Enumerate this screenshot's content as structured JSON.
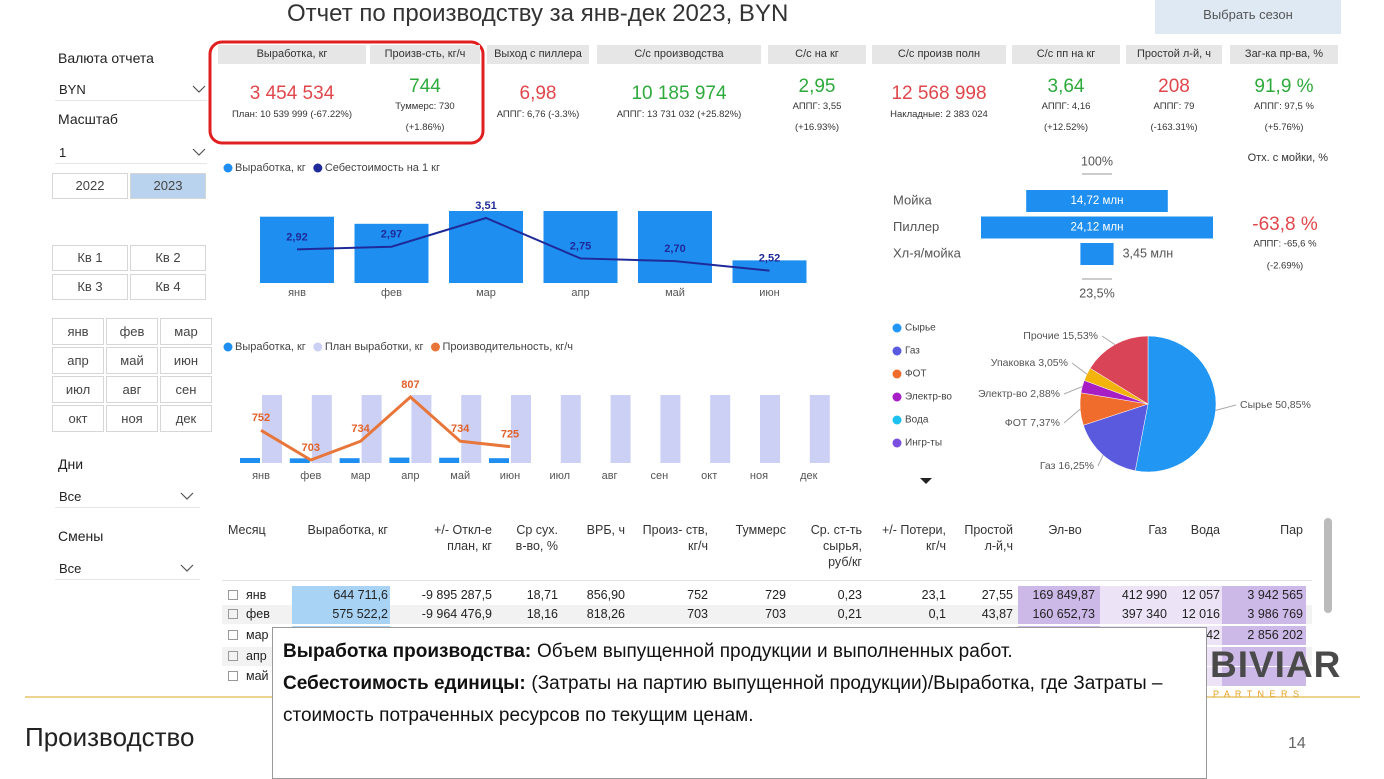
{
  "header": {
    "title": "Отчет по производству за янв-дек 2023, BYN",
    "button": "Выбрать сезон"
  },
  "filters": {
    "currency_label": "Валюта отчета",
    "currency": "BYN",
    "scale_label": "Масштаб",
    "scale": "1",
    "years": [
      {
        "label": "2022",
        "selected": false
      },
      {
        "label": "2023",
        "selected": true
      }
    ],
    "quarters": [
      "Кв 1",
      "Кв 2",
      "Кв 3",
      "Кв 4"
    ],
    "months": [
      "янв",
      "фев",
      "мар",
      "апр",
      "май",
      "июн",
      "июл",
      "авг",
      "сен",
      "окт",
      "ноя",
      "дек"
    ],
    "days_label": "Дни",
    "days": "Все",
    "shifts_label": "Смены",
    "shifts": "Все"
  },
  "kpis": [
    {
      "header": "Выработка, кг",
      "value": "3 454 534",
      "color": "#e0474c",
      "notes": [
        "План: 10 539 999 (-67.22%)"
      ]
    },
    {
      "header": "Произв-сть, кг/ч",
      "value": "744",
      "color": "#2eaa3c",
      "notes": [
        "Туммерс: 730",
        "(+1.86%)"
      ]
    },
    {
      "header": "Выход с пиллера",
      "value": "6,98",
      "color": "#e0474c",
      "notes": [
        "АППГ: 6,76 (-3.3%)"
      ]
    },
    {
      "header": "С/с производства",
      "value": "10 185 974",
      "color": "#2eaa3c",
      "notes": [
        "АППГ: 13 731 032 (+25.82%)"
      ]
    },
    {
      "header": "С/с на кг",
      "value": "2,95",
      "color": "#2eaa3c",
      "notes": [
        "АППГ: 3,55",
        "(+16.93%)"
      ]
    },
    {
      "header": "С/с произв полн",
      "value": "12 568 998",
      "color": "#e0474c",
      "notes": [
        "Накладные: 2 383 024"
      ]
    },
    {
      "header": "С/с пп на кг",
      "value": "3,64",
      "color": "#2eaa3c",
      "notes": [
        "АППГ: 4,16",
        "(+12.52%)"
      ]
    },
    {
      "header": "Простой л-й, ч",
      "value": "208",
      "color": "#e0474c",
      "notes": [
        "АППГ: 79",
        "(-163.31%)"
      ]
    },
    {
      "header": "Заг-ка пр-ва, %",
      "value": "91,9 %",
      "color": "#2eaa3c",
      "notes": [
        "АППГ: 97,5 %",
        "(+5.76%)"
      ]
    }
  ],
  "production_chart": {
    "type": "bar_line",
    "categories": [
      "янв",
      "фев",
      "мар",
      "апр",
      "май",
      "июн"
    ],
    "series": [
      {
        "name": "Выработка, кг",
        "color": "#1e8ff0",
        "values": [
          644711.6,
          575522.2,
          700000,
          700000,
          700000,
          220000
        ]
      },
      {
        "name": "Себестоимость на 1 кг",
        "color": "#1f2a9a",
        "values": [
          2.92,
          2.97,
          3.51,
          2.75,
          2.7,
          2.52
        ],
        "value_labels": [
          "2,92",
          "2,97",
          "3,51",
          "2,75",
          "2,70",
          "2,52"
        ]
      }
    ]
  },
  "plan_chart": {
    "type": "bar_line",
    "categories": [
      "янв",
      "фев",
      "мар",
      "апр",
      "май",
      "июн",
      "июл",
      "авг",
      "сен",
      "окт",
      "ноя",
      "дек"
    ],
    "series": [
      {
        "name": "Выработка, кг",
        "color": "#1e8ff0",
        "values": [
          65000,
          60000,
          62000,
          70000,
          68000,
          62000,
          null,
          null,
          null,
          null,
          null,
          null
        ]
      },
      {
        "name": "План выработки, кг",
        "color": "#ccd0f5",
        "values": [
          878333,
          878333,
          878333,
          878333,
          878333,
          878333,
          878333,
          878333,
          878333,
          878333,
          878333,
          878333
        ]
      },
      {
        "name": "Производительность, кг/ч",
        "color": "#e8763a",
        "values": [
          752,
          703,
          734,
          807,
          734,
          725,
          null,
          null,
          null,
          null,
          null,
          null
        ]
      }
    ]
  },
  "waste_funnel": {
    "type": "funnel",
    "color": "#1e8ff0",
    "top_label": "100%",
    "bottom_label": "23,5%",
    "rows": [
      {
        "name": "Мойка",
        "value": 14.72,
        "value_label": "14,72 млн"
      },
      {
        "name": "Пиллер",
        "value": 24.12,
        "value_label": "24,12 млн"
      },
      {
        "name": "Хл-я/мойка",
        "value": 3.45,
        "value_label": "3,45 млн"
      }
    ],
    "side": {
      "title": "Отх. с мойки, %",
      "value": "-63,8 %",
      "color": "#e0474c",
      "notes": [
        "АППГ: -65,6 %",
        "(-2.69%)"
      ]
    }
  },
  "cost_pie": {
    "type": "pie",
    "legend": [
      {
        "name": "Сырье",
        "color": "#2196f3"
      },
      {
        "name": "Газ",
        "color": "#5a5adf"
      },
      {
        "name": "ФОТ",
        "color": "#f06c2c"
      },
      {
        "name": "Электр-во",
        "color": "#a71fc4"
      },
      {
        "name": "Вода",
        "color": "#1ec0f0"
      },
      {
        "name": "Ингр-ты",
        "color": "#7a4fe0"
      }
    ],
    "slices": [
      {
        "label": "Сырье 50,85%",
        "value": 50.85,
        "color": "#2196f3"
      },
      {
        "label": "Газ 16,25%",
        "value": 16.25,
        "color": "#5a5adf"
      },
      {
        "label": "ФОТ 7,37%",
        "value": 7.37,
        "color": "#f06c2c"
      },
      {
        "label": "Электр-во 2,88%",
        "value": 2.88,
        "color": "#a71fc4"
      },
      {
        "label": "Упаковка 3,05%",
        "value": 3.05,
        "color": "#f2b40a"
      },
      {
        "label": "Прочие 15,53%",
        "value": 15.53,
        "color": "#d94456"
      }
    ]
  },
  "table": {
    "headers": [
      "Месяц",
      "Выработка, кг",
      "+/- Откл-е план, кг",
      "Ср сух. в-во, %",
      "ВРБ, ч",
      "Произ- ств, кг/ч",
      "Туммерс",
      "Ср. ст-ть сырья, руб/кг",
      "+/- Потери, кг/ч",
      "Простой л-й,ч",
      "Эл-во",
      "Газ",
      "Вода",
      "Пар"
    ],
    "rows": [
      [
        "янв",
        "644 711,6",
        "-9 895 287,5",
        "18,71",
        "856,90",
        "752",
        "729",
        "0,23",
        "23,1",
        "27,55",
        "169 849,87",
        "412 990",
        "12 057",
        "3 942 565"
      ],
      [
        "фев",
        "575 522,2",
        "-9 964 476,9",
        "18,16",
        "818,26",
        "703",
        "703",
        "0,21",
        "0,1",
        "43,87",
        "160 652,73",
        "397 340",
        "12 016",
        "3 986 769"
      ],
      [
        "мар",
        null,
        null,
        null,
        null,
        null,
        null,
        null,
        null,
        null,
        null,
        null,
        "42",
        "2 856 202"
      ],
      [
        "апр"
      ],
      [
        "май"
      ]
    ]
  },
  "tooltip": {
    "paragraphs": [
      {
        "term": "Выработка производства:",
        "text": "Объем выпущенной продукции и выполненных работ."
      },
      {
        "term": "Себестоимость единицы:",
        "text": "(Затраты на партию выпущенной продукции)/Выработка, где Затраты – стоимость потраченных ресурсов по текущим ценам."
      }
    ]
  },
  "footer": {
    "section": "Производство",
    "page": "14",
    "logo": "BIVIAR",
    "logo_sub": "P A R T N E R S"
  }
}
